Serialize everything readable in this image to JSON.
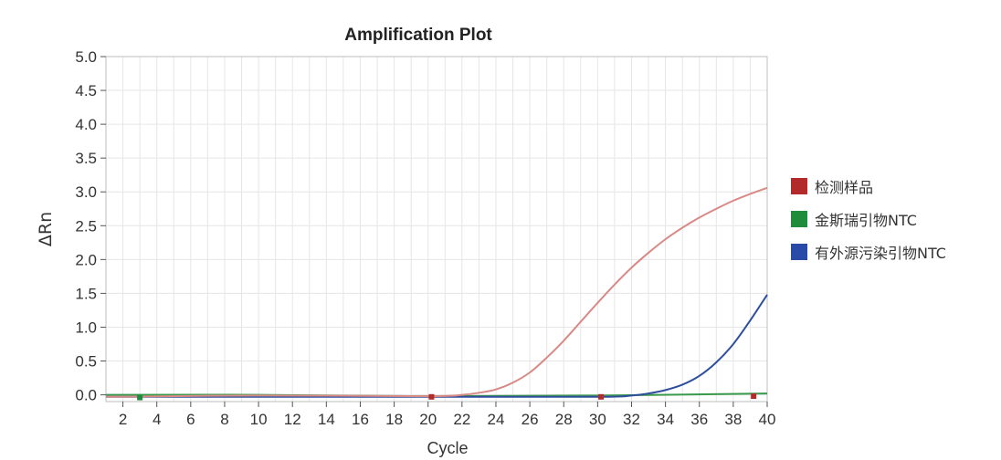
{
  "chart_data": {
    "type": "line",
    "title": "Amplification Plot",
    "xlabel": "Cycle",
    "ylabel": "ΔRn",
    "xlim": [
      1,
      40
    ],
    "ylim": [
      -0.1,
      5.0
    ],
    "xticks": [
      2,
      4,
      6,
      8,
      10,
      12,
      14,
      16,
      18,
      20,
      22,
      24,
      26,
      28,
      30,
      32,
      34,
      36,
      38,
      40
    ],
    "yticks": [
      0.0,
      0.5,
      1.0,
      1.5,
      2.0,
      2.5,
      3.0,
      3.5,
      4.0,
      4.5,
      5.0
    ],
    "grid": true,
    "legend_position": "right",
    "series": [
      {
        "name": "检测样品",
        "color": "#b22a2a",
        "line_color": "#d88a86",
        "x": [
          1,
          10,
          20,
          22,
          23,
          24,
          25,
          26,
          27,
          28,
          29,
          30,
          31,
          32,
          33,
          34,
          35,
          36,
          37,
          38,
          39,
          40
        ],
        "y": [
          -0.03,
          -0.01,
          -0.02,
          0.0,
          0.03,
          0.08,
          0.18,
          0.33,
          0.55,
          0.8,
          1.08,
          1.36,
          1.63,
          1.88,
          2.1,
          2.3,
          2.47,
          2.62,
          2.75,
          2.87,
          2.97,
          3.06
        ],
        "markers": [
          {
            "x": 20.2,
            "y": -0.03
          },
          {
            "x": 30.2,
            "y": -0.03
          },
          {
            "x": 39.2,
            "y": -0.02
          }
        ]
      },
      {
        "name": "金斯瑞引物NTC",
        "color": "#1e8c3a",
        "line_color": "#3a9a4c",
        "x": [
          1,
          10,
          20,
          30,
          40
        ],
        "y": [
          0.0,
          0.0,
          -0.02,
          -0.01,
          0.02
        ],
        "markers": [
          {
            "x": 3.0,
            "y": -0.04
          }
        ]
      },
      {
        "name": "有外源污染引物NTC",
        "color": "#2a4aa8",
        "line_color": "#2f4f9e",
        "x": [
          1,
          20,
          30,
          32,
          33,
          34,
          35,
          36,
          37,
          38,
          39,
          40
        ],
        "y": [
          -0.03,
          -0.03,
          -0.03,
          -0.01,
          0.02,
          0.07,
          0.15,
          0.28,
          0.48,
          0.75,
          1.1,
          1.48
        ],
        "markers": []
      }
    ]
  }
}
